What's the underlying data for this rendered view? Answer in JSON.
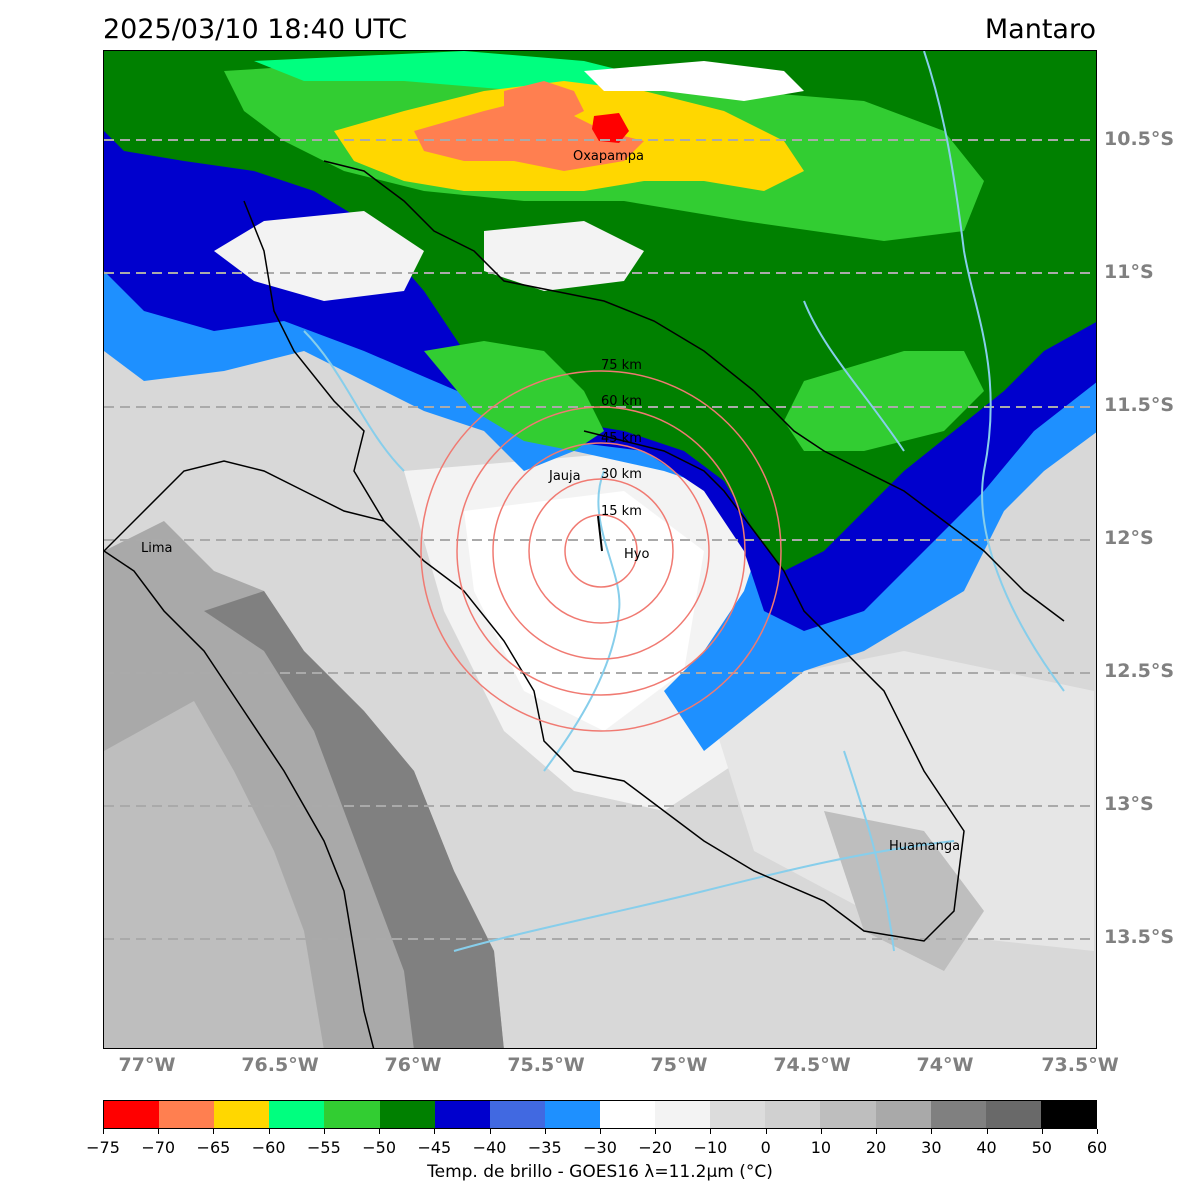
{
  "header": {
    "datetime": "2025/03/10 18:40 UTC",
    "region": "Mantaro"
  },
  "map": {
    "lat_labels": [
      "10.5°S",
      "11°S",
      "11.5°S",
      "12°S",
      "12.5°S",
      "13°S",
      "13.5°S"
    ],
    "lon_labels": [
      "77°W",
      "76.5°W",
      "76°W",
      "75.5°W",
      "75°W",
      "74.5°W",
      "74°W",
      "73.5°W"
    ],
    "cities": [
      "Oxapampa",
      "Jauja",
      "Lima",
      "Hyo",
      "Huamanga"
    ],
    "rings": [
      "15 km",
      "30 km",
      "45 km",
      "60 km",
      "75 km"
    ],
    "colors": {
      "ring": "#f07a72",
      "river": "#87ceeb",
      "gridline": "#aaaaaa"
    }
  },
  "colorbar": {
    "colors": [
      "#ff0000",
      "#ff7f50",
      "#ffd700",
      "#00ff7f",
      "#32cd32",
      "#008000",
      "#0000cd",
      "#4169e1",
      "#1e90ff",
      "#ffffff",
      "#f3f3f3",
      "#dcdcdc",
      "#d0d0d0",
      "#bebebe",
      "#a9a9a9",
      "#808080",
      "#696969",
      "#000000"
    ],
    "ticks": [
      "−75",
      "−70",
      "−65",
      "−60",
      "−55",
      "−50",
      "−45",
      "−40",
      "−35",
      "−30",
      "−20",
      "−10",
      "0",
      "10",
      "20",
      "30",
      "40",
      "50",
      "60"
    ],
    "label": "Temp. de brillo - GOES16 λ=11.2μm (°C)"
  }
}
